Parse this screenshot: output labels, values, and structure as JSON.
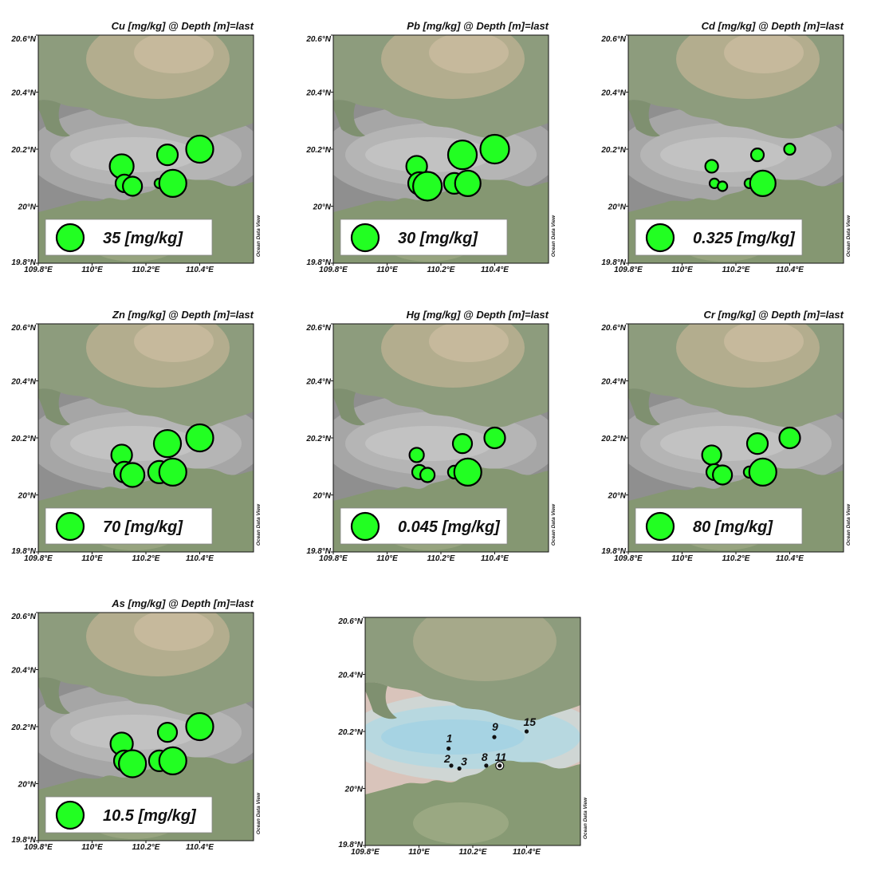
{
  "maps": [
    {
      "title": "Cu [mg/kg] @ Depth [m]=last",
      "legend_label": "35 [mg/kg]"
    },
    {
      "title": "Pb [mg/kg] @ Depth [m]=last",
      "legend_label": "30 [mg/kg]"
    },
    {
      "title": "Cd [mg/kg] @ Depth [m]=last",
      "legend_label": "0.325 [mg/kg]"
    },
    {
      "title": "Zn [mg/kg] @ Depth [m]=last",
      "legend_label": "70 [mg/kg]"
    },
    {
      "title": "Hg [mg/kg] @ Depth [m]=last",
      "legend_label": "0.045 [mg/kg]"
    },
    {
      "title": "Cr [mg/kg] @ Depth [m]=last",
      "legend_label": "80 [mg/kg]"
    },
    {
      "title": "As [mg/kg] @ Depth [m]=last",
      "legend_label": "10.5 [mg/kg]"
    }
  ],
  "station_map": {
    "stations": [
      {
        "label": "1",
        "lon": 110.11,
        "lat": 20.14
      },
      {
        "label": "2",
        "lon": 110.12,
        "lat": 20.08
      },
      {
        "label": "3",
        "lon": 110.15,
        "lat": 20.07
      },
      {
        "label": "8",
        "lon": 110.25,
        "lat": 20.08
      },
      {
        "label": "9",
        "lon": 110.28,
        "lat": 20.18
      },
      {
        "label": "11",
        "lon": 110.3,
        "lat": 20.08
      },
      {
        "label": "15",
        "lon": 110.4,
        "lat": 20.2
      }
    ]
  },
  "axes": {
    "lat_ticks": [
      "20.6°N",
      "20.4°N",
      "20.2°N",
      "20°N",
      "19.8°N"
    ],
    "lon_ticks": [
      "109.8°E",
      "110°E",
      "110.2°E",
      "110.4°E"
    ],
    "credit": "Ocean Data View"
  },
  "bubbles": {
    "Cu": [
      15,
      11,
      12,
      6,
      13,
      17,
      17
    ],
    "Pb": [
      13,
      14,
      18,
      13,
      18,
      16,
      18
    ],
    "Cd": [
      8,
      6,
      6,
      6,
      8,
      16,
      7
    ],
    "Zn": [
      13,
      13,
      15,
      14,
      17,
      17,
      17
    ],
    "Hg": [
      9,
      9,
      9,
      8,
      12,
      17,
      13
    ],
    "Cr": [
      12,
      10,
      12,
      7,
      13,
      17,
      13
    ],
    "As": [
      14,
      13,
      17,
      13,
      12,
      17,
      17
    ]
  },
  "colors": {
    "bubble": "#22ff22",
    "station": "#111111"
  }
}
